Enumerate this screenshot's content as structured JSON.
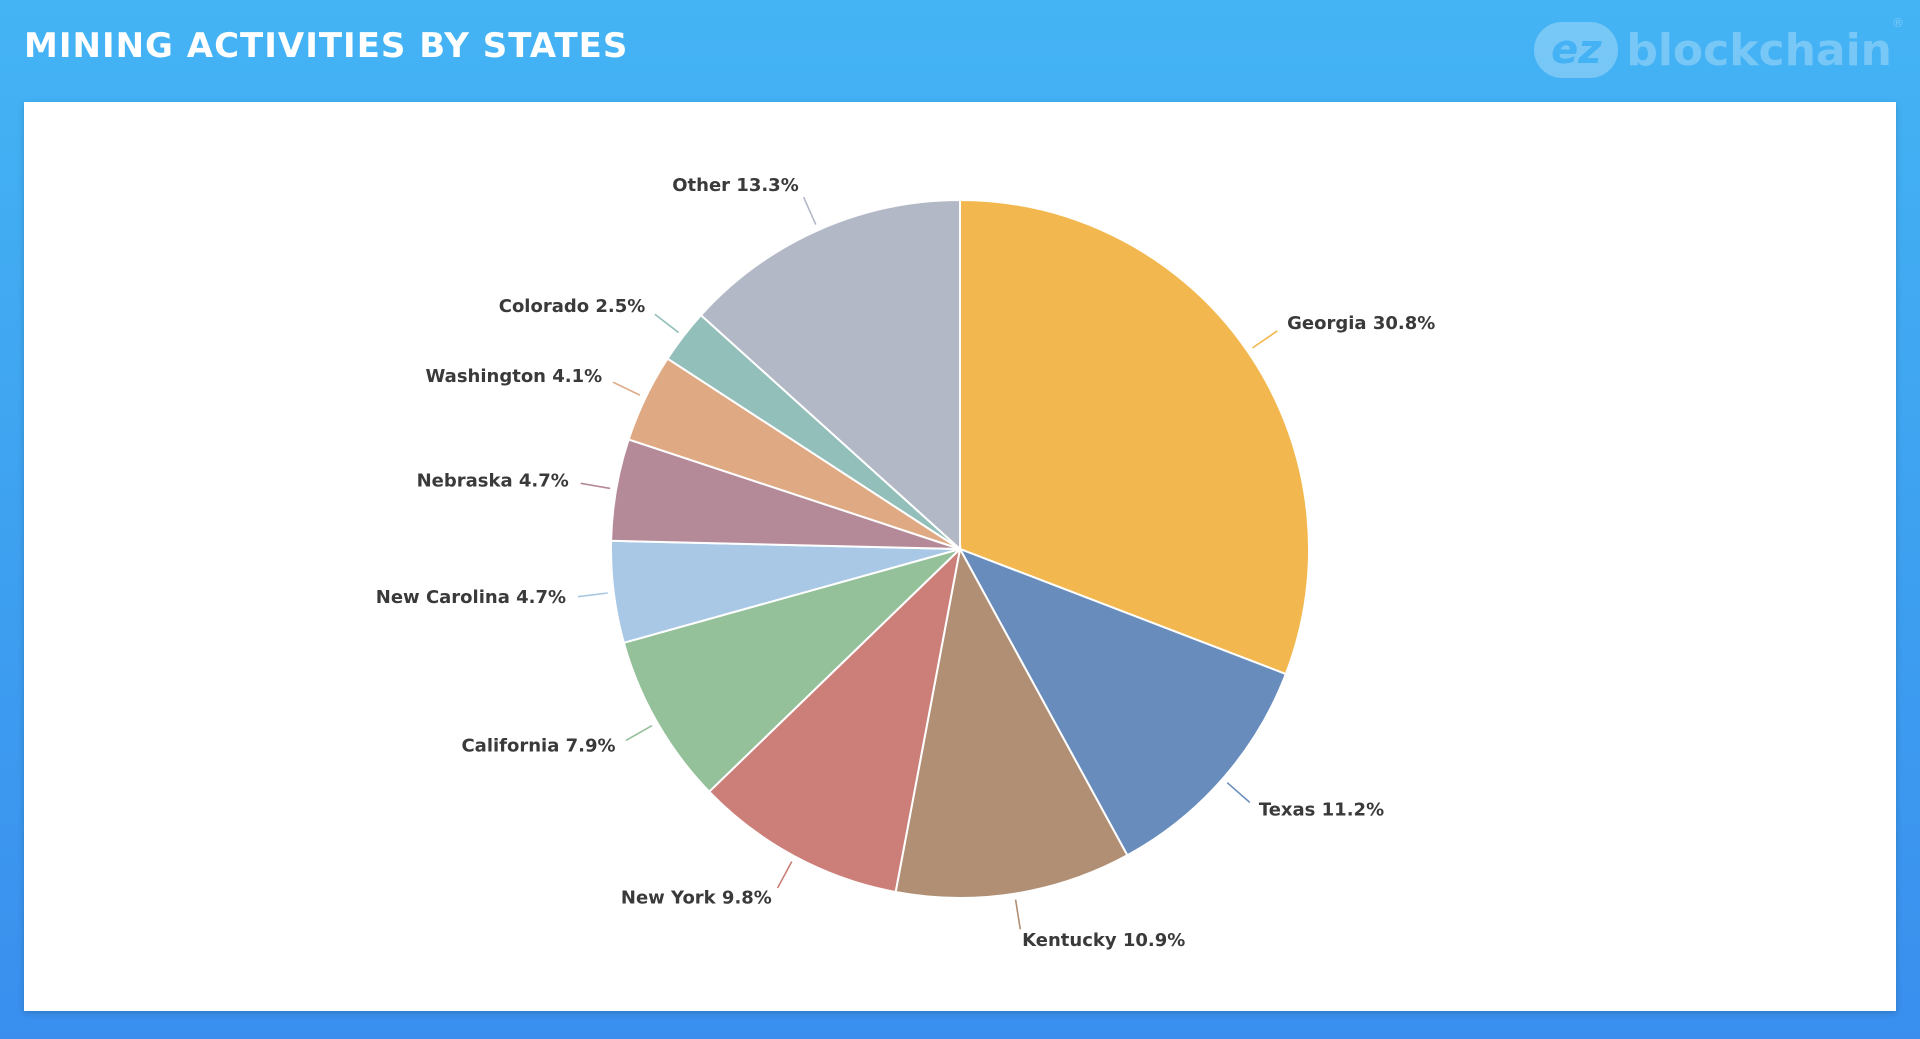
{
  "header": {
    "title": "MINING ACTIVITIES BY STATES",
    "logo_mark": "ez",
    "logo_text": "blockchain",
    "logo_reg": "®"
  },
  "chart_data": {
    "type": "pie",
    "title": "",
    "start_angle_deg": 0,
    "direction": "clockwise",
    "slices": [
      {
        "label": "Georgia 30.8%",
        "value": 30.8,
        "color": "#f2b84f"
      },
      {
        "label": "Texas 11.2%",
        "value": 11.2,
        "color": "#688cbb"
      },
      {
        "label": "Kentucky 10.9%",
        "value": 10.9,
        "color": "#b08f75"
      },
      {
        "label": "New York 9.8%",
        "value": 9.8,
        "color": "#cc7e78"
      },
      {
        "label": "California 7.9%",
        "value": 7.9,
        "color": "#94c09a"
      },
      {
        "label": "New Carolina 4.7%",
        "value": 4.7,
        "color": "#a8c8e6"
      },
      {
        "label": "Nebraska 4.7%",
        "value": 4.7,
        "color": "#b58a98"
      },
      {
        "label": "Washington 4.1%",
        "value": 4.1,
        "color": "#dea983"
      },
      {
        "label": "Colorado 2.5%",
        "value": 2.5,
        "color": "#93bfbb"
      },
      {
        "label": "Other 13.3%",
        "value": 13.3,
        "color": "#b2b8c6"
      }
    ]
  }
}
